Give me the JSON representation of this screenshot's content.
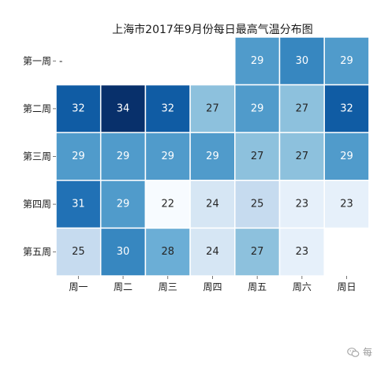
{
  "chart_data": {
    "type": "heatmap",
    "title": "上海市2017年9月份每日最高气温分布图",
    "x_categories": [
      "周一",
      "周二",
      "周三",
      "周四",
      "周五",
      "周六",
      "周日"
    ],
    "y_categories": [
      "第一周",
      "第二周",
      "第三周",
      "第四周",
      "第五周"
    ],
    "values": [
      [
        null,
        null,
        null,
        null,
        29,
        30,
        29
      ],
      [
        32,
        34,
        32,
        27,
        29,
        27,
        32
      ],
      [
        29,
        29,
        29,
        29,
        27,
        27,
        29
      ],
      [
        31,
        29,
        22,
        24,
        25,
        23,
        23
      ],
      [
        25,
        30,
        28,
        24,
        27,
        23,
        null
      ]
    ],
    "missing_marker": "-",
    "value_range": [
      22,
      34
    ],
    "colormap": "Blues",
    "color_low": "#f7fbff",
    "color_high": "#08306b",
    "legend": "none"
  },
  "watermark": {
    "icon": "wechat-icon",
    "text": "每"
  }
}
